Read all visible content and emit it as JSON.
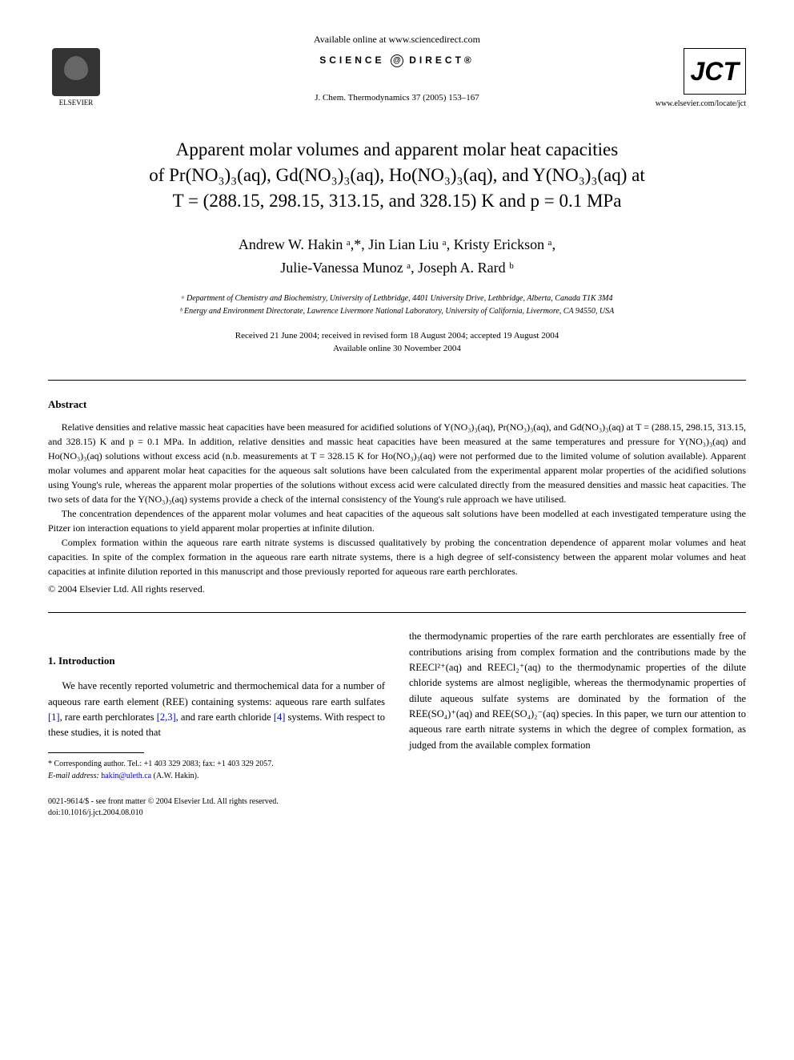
{
  "header": {
    "available_online": "Available online at www.sciencedirect.com",
    "science_direct": "SCIENCE",
    "direct_suffix": "DIRECT®",
    "journal_ref": "J. Chem. Thermodynamics 37 (2005) 153–167",
    "elsevier_label": "ELSEVIER",
    "jct_label": "JCT",
    "journal_url": "www.elsevier.com/locate/jct"
  },
  "article": {
    "title_line1": "Apparent molar volumes and apparent molar heat capacities",
    "title_line2": "of Pr(NO₃)₃(aq), Gd(NO₃)₃(aq), Ho(NO₃)₃(aq), and Y(NO₃)₃(aq) at",
    "title_line3": "T = (288.15, 298.15, 313.15, and 328.15) K and p = 0.1 MPa",
    "authors_line1": "Andrew W. Hakin ᵃ,*, Jin Lian Liu ᵃ, Kristy Erickson ᵃ,",
    "authors_line2": "Julie-Vanessa Munoz ᵃ, Joseph A. Rard ᵇ",
    "affiliation_a": "ᵃ Department of Chemistry and Biochemistry, University of Lethbridge, 4401 University Drive, Lethbridge, Alberta, Canada T1K 3M4",
    "affiliation_b": "ᵇ Energy and Environment Directorate, Lawrence Livermore National Laboratory, University of California, Livermore, CA 94550, USA",
    "received": "Received 21 June 2004; received in revised form 18 August 2004; accepted 19 August 2004",
    "available": "Available online 30 November 2004"
  },
  "abstract": {
    "heading": "Abstract",
    "p1": "Relative densities and relative massic heat capacities have been measured for acidified solutions of Y(NO₃)₃(aq), Pr(NO₃)₃(aq), and Gd(NO₃)₃(aq) at T = (288.15, 298.15, 313.15, and 328.15) K and p = 0.1 MPa. In addition, relative densities and massic heat capacities have been measured at the same temperatures and pressure for Y(NO₃)₃(aq) and Ho(NO₃)₃(aq) solutions without excess acid (n.b. measurements at T = 328.15 K for Ho(NO₃)₃(aq) were not performed due to the limited volume of solution available). Apparent molar volumes and apparent molar heat capacities for the aqueous salt solutions have been calculated from the experimental apparent molar properties of the acidified solutions using Young's rule, whereas the apparent molar properties of the solutions without excess acid were calculated directly from the measured densities and massic heat capacities. The two sets of data for the Y(NO₃)₃(aq) systems provide a check of the internal consistency of the Young's rule approach we have utilised.",
    "p2": "The concentration dependences of the apparent molar volumes and heat capacities of the aqueous salt solutions have been modelled at each investigated temperature using the Pitzer ion interaction equations to yield apparent molar properties at infinite dilution.",
    "p3": "Complex formation within the aqueous rare earth nitrate systems is discussed qualitatively by probing the concentration dependence of apparent molar volumes and heat capacities. In spite of the complex formation in the aqueous rare earth nitrate systems, there is a high degree of self-consistency between the apparent molar volumes and heat capacities at infinite dilution reported in this manuscript and those previously reported for aqueous rare earth perchlorates.",
    "copyright": "© 2004 Elsevier Ltd. All rights reserved."
  },
  "introduction": {
    "heading": "1. Introduction",
    "left_p1_part1": "We have recently reported volumetric and thermochemical data for a number of aqueous rare earth element (REE) containing systems: aqueous rare earth sulfates ",
    "ref1": "[1]",
    "left_p1_part2": ", rare earth perchlorates ",
    "ref23": "[2,3]",
    "left_p1_part3": ", and rare earth chloride ",
    "ref4": "[4]",
    "left_p1_part4": " systems. With respect to these studies, it is noted that",
    "right_p1": "the thermodynamic properties of the rare earth perchlorates are essentially free of contributions arising from complex formation and the contributions made by the REECl²⁺(aq) and REECl₂⁺(aq) to the thermodynamic properties of the dilute chloride systems are almost negligible, whereas the thermodynamic properties of dilute aqueous sulfate systems are dominated by the formation of the REE(SO₄)⁺(aq) and REE(SO₄)₂⁻(aq) species. In this paper, we turn our attention to aqueous rare earth nitrate systems in which the degree of complex formation, as judged from the available complex formation"
  },
  "footnotes": {
    "corresponding": "* Corresponding author. Tel.: +1 403 329 2083; fax: +1 403 329 2057.",
    "email_label": "E-mail address: ",
    "email": "hakin@uleth.ca",
    "email_suffix": " (A.W. Hakin)."
  },
  "footer": {
    "issn": "0021-9614/$ - see front matter © 2004 Elsevier Ltd. All rights reserved.",
    "doi": "doi:10.1016/j.jct.2004.08.010"
  },
  "styling": {
    "background_color": "#ffffff",
    "text_color": "#000000",
    "link_color": "#0000cc",
    "body_font": "Georgia, Times New Roman, serif",
    "title_fontsize": 23,
    "author_fontsize": 18,
    "body_fontsize": 12.5,
    "abstract_fontsize": 12
  }
}
